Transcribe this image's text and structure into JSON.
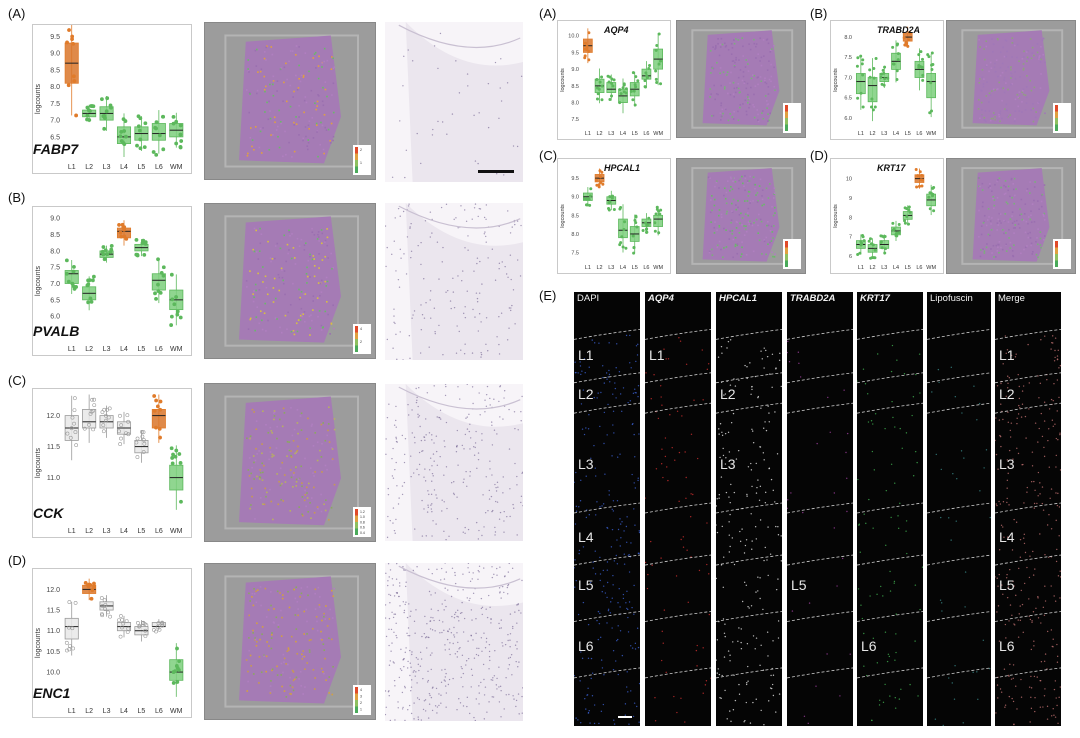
{
  "left_panel_labels": [
    "(A)",
    "(B)",
    "(C)",
    "(D)"
  ],
  "right_panel_labels": [
    "(A)",
    "(B)",
    "(C)",
    "(D)",
    "(E)"
  ],
  "common": {
    "ylabel": "logcounts",
    "layers": [
      "L1",
      "L2",
      "L3",
      "L4",
      "L5",
      "L6",
      "WM"
    ]
  },
  "colors": {
    "orange": "#e07b2a",
    "green": "#5cb85c",
    "gray": "#9a9a9a"
  },
  "chart_data": [
    {
      "type": "box",
      "gene": "FABP7",
      "categories": [
        "L1",
        "L2",
        "L3",
        "L4",
        "L5",
        "L6",
        "WM"
      ],
      "yticks": [
        "6.0",
        "6.5",
        "7.0",
        "7.5",
        "8.0",
        "8.5",
        "9.0",
        "9.5"
      ],
      "ylim": [
        5.9,
        9.6
      ],
      "median": [
        8.7,
        7.2,
        7.2,
        6.5,
        6.6,
        6.6,
        6.7
      ],
      "q1": [
        8.1,
        7.1,
        7.0,
        6.3,
        6.4,
        6.4,
        6.5
      ],
      "q3": [
        9.3,
        7.3,
        7.4,
        6.8,
        6.8,
        6.9,
        6.9
      ],
      "colors": [
        "orange",
        "green",
        "green",
        "green",
        "green",
        "green",
        "green"
      ],
      "scale_ticks": [
        "2",
        "1"
      ]
    },
    {
      "type": "box",
      "gene": "PVALB",
      "categories": [
        "L1",
        "L2",
        "L3",
        "L4",
        "L5",
        "L6",
        "WM"
      ],
      "yticks": [
        "5.5",
        "6.0",
        "6.5",
        "7.0",
        "7.5",
        "8.0",
        "8.5",
        "9.0"
      ],
      "ylim": [
        5.3,
        9.1
      ],
      "median": [
        7.3,
        6.7,
        7.9,
        8.6,
        8.1,
        7.1,
        6.5
      ],
      "q1": [
        7.0,
        6.5,
        7.8,
        8.4,
        8.0,
        6.8,
        6.2
      ],
      "q3": [
        7.4,
        6.9,
        8.0,
        8.7,
        8.2,
        7.3,
        6.8
      ],
      "colors": [
        "green",
        "green",
        "green",
        "orange",
        "green",
        "green",
        "green"
      ],
      "scale_ticks": [
        "4",
        "2"
      ]
    },
    {
      "type": "box",
      "gene": "CCK",
      "categories": [
        "L1",
        "L2",
        "L3",
        "L4",
        "L5",
        "L6",
        "WM"
      ],
      "yticks": [
        "10.5",
        "11.0",
        "11.5",
        "12.0"
      ],
      "ylim": [
        10.3,
        12.3
      ],
      "median": [
        11.8,
        11.9,
        11.9,
        11.8,
        11.5,
        12.0,
        11.0
      ],
      "q1": [
        11.6,
        11.8,
        11.8,
        11.7,
        11.4,
        11.8,
        10.8
      ],
      "q3": [
        12.0,
        12.1,
        12.0,
        11.9,
        11.6,
        12.1,
        11.2
      ],
      "colors": [
        "gray",
        "gray",
        "gray",
        "gray",
        "gray",
        "orange",
        "green"
      ],
      "scale_ticks": [
        "1.2",
        "1.0",
        "0.8",
        "0.6",
        "0.4"
      ]
    },
    {
      "type": "box",
      "gene": "ENC1",
      "categories": [
        "L1",
        "L2",
        "L3",
        "L4",
        "L5",
        "L6",
        "WM"
      ],
      "yticks": [
        "9.5",
        "10.0",
        "10.5",
        "11.0",
        "11.5",
        "12.0"
      ],
      "ylim": [
        9.3,
        12.3
      ],
      "median": [
        11.1,
        12.0,
        11.6,
        11.1,
        11.0,
        11.1,
        10.0
      ],
      "q1": [
        10.8,
        11.9,
        11.5,
        11.0,
        10.9,
        11.1,
        9.8
      ],
      "q3": [
        11.3,
        12.1,
        11.7,
        11.2,
        11.1,
        11.2,
        10.3
      ],
      "colors": [
        "gray",
        "orange",
        "gray",
        "gray",
        "gray",
        "gray",
        "green"
      ],
      "scale_ticks": [
        "4",
        "3",
        "2",
        "1"
      ]
    },
    {
      "type": "box",
      "gene": "AQP4",
      "categories": [
        "L1",
        "L2",
        "L3",
        "L4",
        "L5",
        "L6",
        "WM"
      ],
      "yticks": [
        "7.5",
        "8.0",
        "8.5",
        "9.0",
        "9.5",
        "10.0"
      ],
      "ylim": [
        7.3,
        10.2
      ],
      "median": [
        9.7,
        8.5,
        8.4,
        8.2,
        8.4,
        8.8,
        9.3
      ],
      "q1": [
        9.5,
        8.3,
        8.3,
        8.0,
        8.2,
        8.7,
        9.0
      ],
      "q3": [
        9.9,
        8.7,
        8.6,
        8.4,
        8.6,
        9.0,
        9.6
      ],
      "colors": [
        "orange",
        "green",
        "green",
        "green",
        "green",
        "green",
        "green"
      ],
      "scale_ticks": []
    },
    {
      "type": "box",
      "gene": "TRABD2A",
      "categories": [
        "L1",
        "L2",
        "L3",
        "L4",
        "L5",
        "L6",
        "WM"
      ],
      "yticks": [
        "6.0",
        "6.5",
        "7.0",
        "7.5",
        "8.0"
      ],
      "ylim": [
        5.8,
        8.2
      ],
      "median": [
        6.9,
        6.8,
        7.0,
        7.4,
        8.0,
        7.2,
        6.9
      ],
      "q1": [
        6.6,
        6.4,
        6.9,
        7.2,
        7.9,
        7.0,
        6.5
      ],
      "q3": [
        7.1,
        7.0,
        7.1,
        7.6,
        8.1,
        7.4,
        7.1
      ],
      "colors": [
        "green",
        "green",
        "green",
        "green",
        "orange",
        "green",
        "green"
      ],
      "scale_ticks": []
    },
    {
      "type": "box",
      "gene": "HPCAL1",
      "categories": [
        "L1",
        "L2",
        "L3",
        "L4",
        "L5",
        "L6",
        "WM"
      ],
      "yticks": [
        "7.5",
        "8.0",
        "8.5",
        "9.0",
        "9.5"
      ],
      "ylim": [
        7.3,
        9.8
      ],
      "median": [
        9.0,
        9.5,
        8.9,
        8.1,
        8.0,
        8.3,
        8.4
      ],
      "q1": [
        8.9,
        9.4,
        8.8,
        7.9,
        7.8,
        8.2,
        8.2
      ],
      "q3": [
        9.1,
        9.6,
        9.0,
        8.4,
        8.2,
        8.4,
        8.5
      ],
      "colors": [
        "green",
        "orange",
        "green",
        "green",
        "green",
        "green",
        "green"
      ],
      "scale_ticks": []
    },
    {
      "type": "box",
      "gene": "KRT17",
      "categories": [
        "L1",
        "L2",
        "L3",
        "L4",
        "L5",
        "L6",
        "WM"
      ],
      "yticks": [
        "6",
        "7",
        "8",
        "9",
        "10"
      ],
      "ylim": [
        5.8,
        10.6
      ],
      "median": [
        6.6,
        6.4,
        6.6,
        7.3,
        8.1,
        10.0,
        8.9
      ],
      "q1": [
        6.4,
        6.2,
        6.4,
        7.1,
        7.9,
        9.8,
        8.6
      ],
      "q3": [
        6.8,
        6.6,
        6.8,
        7.5,
        8.3,
        10.2,
        9.2
      ],
      "colors": [
        "green",
        "green",
        "green",
        "green",
        "green",
        "orange",
        "green"
      ],
      "scale_ticks": []
    }
  ],
  "microscopy": {
    "channels": [
      "DAPI",
      "AQP4",
      "HPCAL1",
      "TRABD2A",
      "KRT17",
      "Lipofuscin",
      "Merge"
    ],
    "italic": [
      false,
      true,
      true,
      true,
      true,
      false,
      false
    ],
    "layer_labels": [
      [
        "L1",
        "L2",
        "L3",
        "L4",
        "L5",
        "L6"
      ],
      [
        "L1"
      ],
      [
        "L2",
        "L3"
      ],
      [
        "L5"
      ],
      [
        "L6"
      ],
      [],
      [
        "L1",
        "L2",
        "L3",
        "L4",
        "L5",
        "L6"
      ]
    ]
  }
}
